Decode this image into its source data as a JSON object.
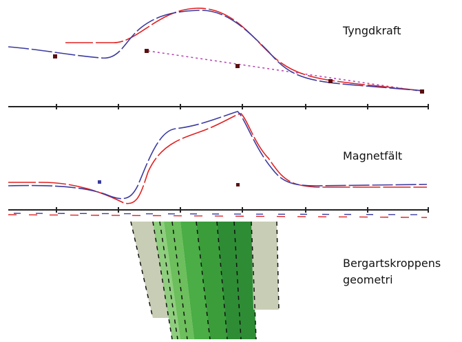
{
  "labels": {
    "gravity": "Tyngdkraft",
    "magnetic": "Magnetfält",
    "geometry": [
      "Bergartskroppens",
      "geometri"
    ]
  }
}
